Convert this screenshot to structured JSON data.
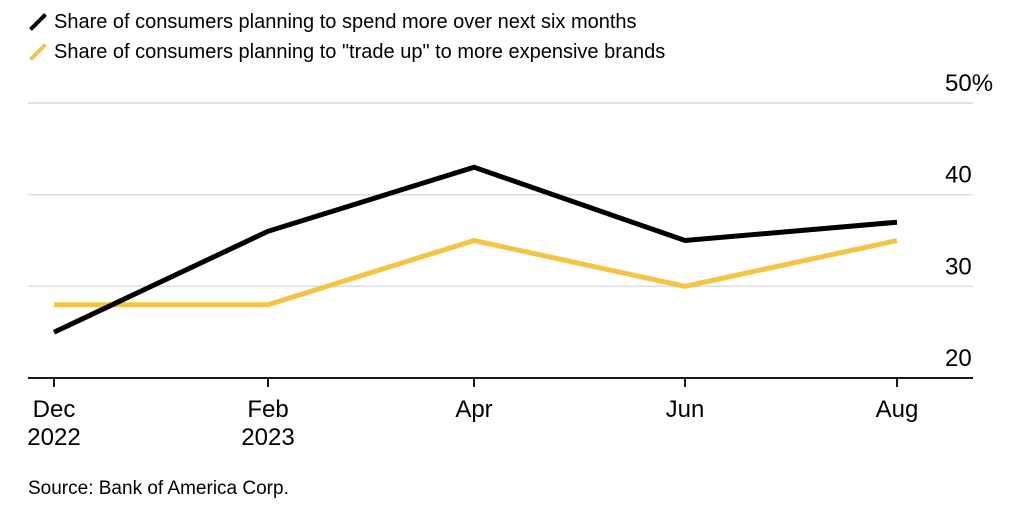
{
  "legend": {
    "series1": "Share of consumers planning to spend more over next six months",
    "series2": "Share of consumers planning to \"trade up\" to more expensive brands"
  },
  "source": "Source: Bank of America Corp.",
  "colors": {
    "background": "#FFFFFF",
    "text": "#000000",
    "gridline": "#DEDEDE",
    "axis": "#1A1A1A"
  },
  "chart_data": {
    "type": "line",
    "categories": [
      "Dec 2022",
      "Feb 2023",
      "Apr 2023",
      "Jun 2023",
      "Aug 2023"
    ],
    "series": [
      {
        "id": "spend-more",
        "name": "Share of consumers planning to spend more over next six months",
        "color": "#000000",
        "values": [
          25,
          36,
          43,
          35,
          37
        ]
      },
      {
        "id": "trade-up",
        "name": "Share of consumers planning to \"trade up\" to more expensive brands",
        "color": "#F4C445",
        "values": [
          28,
          28,
          35,
          30,
          35
        ]
      }
    ],
    "title": "",
    "xlabel": "",
    "ylabel": "",
    "unit": "%",
    "ylim": [
      20,
      50
    ],
    "y_ticks": [
      {
        "value": 50,
        "label": "50%"
      },
      {
        "value": 40,
        "label": "40"
      },
      {
        "value": 30,
        "label": "30"
      },
      {
        "value": 20,
        "label": "20"
      }
    ],
    "x_tick_labels": [
      {
        "month": "Dec",
        "year": "2022"
      },
      {
        "month": "Feb",
        "year": "2023"
      },
      {
        "month": "Apr",
        "year": ""
      },
      {
        "month": "Jun",
        "year": ""
      },
      {
        "month": "Aug",
        "year": ""
      }
    ],
    "grid": "horizontal",
    "legend_position": "top-left"
  }
}
